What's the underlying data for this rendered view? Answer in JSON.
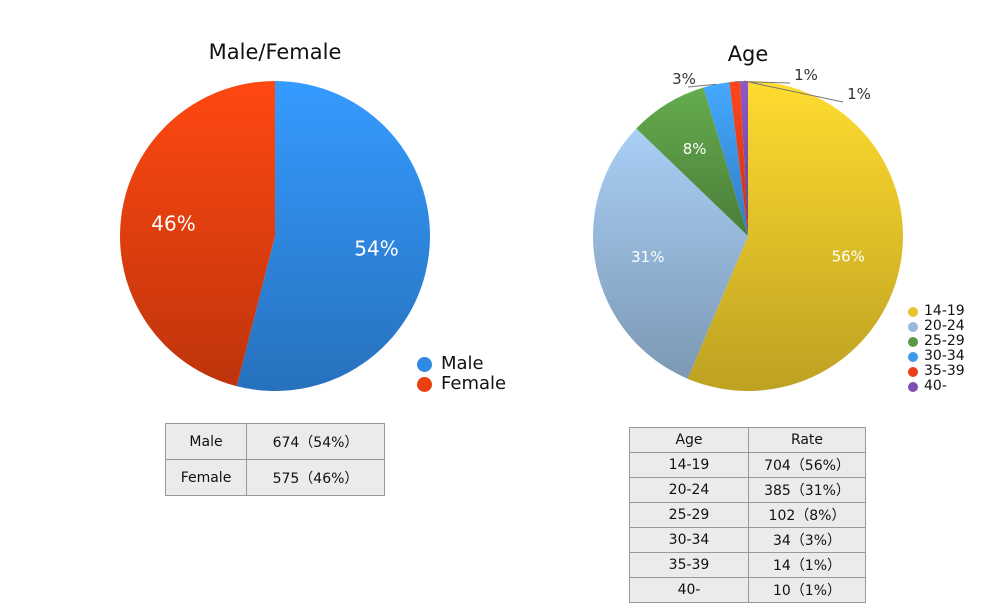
{
  "chart_data": [
    {
      "type": "pie",
      "title": "Male/Female",
      "legend_placement": "bottom-right",
      "categories": [
        "Male",
        "Female"
      ],
      "values": [
        674,
        575
      ],
      "labels": [
        "54%",
        "46%"
      ],
      "colors": [
        "#2f8ae6",
        "#e8400f"
      ]
    },
    {
      "type": "pie",
      "title": "Age",
      "legend_placement": "right",
      "categories": [
        "14-19",
        "20-24",
        "25-29",
        "30-34",
        "35-39",
        "40-"
      ],
      "values": [
        704,
        385,
        102,
        34,
        14,
        10
      ],
      "labels": [
        "56%",
        "31%",
        "8%",
        "3%",
        "1%",
        "1%"
      ],
      "colors": [
        "#e6c42a",
        "#97b9db",
        "#5a9a46",
        "#3d97ea",
        "#ea3f1a",
        "#7e4fb0"
      ]
    }
  ],
  "tables": {
    "gender": {
      "rows": [
        [
          "Male",
          "674（54%）"
        ],
        [
          "Female",
          "575（46%）"
        ]
      ]
    },
    "age": {
      "headers": [
        "Age",
        "Rate"
      ],
      "rows": [
        [
          "14-19",
          "704（56%）"
        ],
        [
          "20-24",
          "385（31%）"
        ],
        [
          "25-29",
          "102（8%）"
        ],
        [
          "30-34",
          "34（3%）"
        ],
        [
          "35-39",
          "14（1%）"
        ],
        [
          "40-",
          "10（1%）"
        ]
      ]
    }
  }
}
